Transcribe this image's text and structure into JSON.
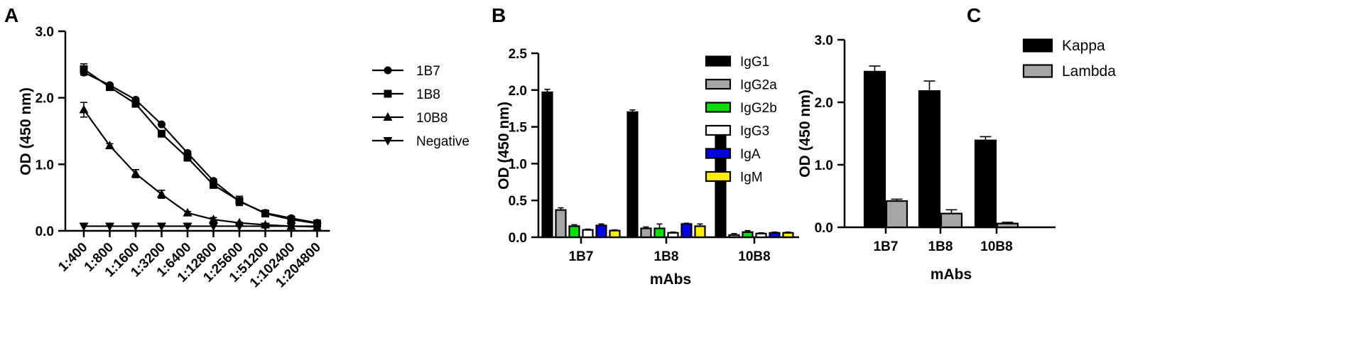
{
  "chart_data": [
    {
      "panel": "A",
      "type": "line",
      "ylabel": "OD (450 nm)",
      "xlabel": "",
      "ylim": [
        0,
        3.0
      ],
      "yticks": [
        "0.0",
        "1.0",
        "2.0",
        "3.0"
      ],
      "categories": [
        "1:400",
        "1:800",
        "1:1600",
        "1:3200",
        "1:6400",
        "1:12800",
        "1:25600",
        "1:51200",
        "1:102400",
        "1:204800"
      ],
      "series": [
        {
          "name": "1B7",
          "marker": "circle",
          "values": [
            2.38,
            2.19,
            1.97,
            1.6,
            1.17,
            0.75,
            0.44,
            0.27,
            0.19,
            0.12
          ],
          "errors": [
            0.04,
            0.02,
            0.03,
            0.02,
            0.03,
            0.03,
            0.04,
            0.02,
            0.02,
            0.01
          ]
        },
        {
          "name": "1B8",
          "marker": "square",
          "values": [
            2.43,
            2.16,
            1.91,
            1.46,
            1.1,
            0.69,
            0.45,
            0.26,
            0.17,
            0.11
          ],
          "errors": [
            0.08,
            0.02,
            0.04,
            0.02,
            0.05,
            0.03,
            0.07,
            0.02,
            0.02,
            0.01
          ]
        },
        {
          "name": "10B8",
          "marker": "triangle-up",
          "values": [
            1.82,
            1.28,
            0.86,
            0.55,
            0.27,
            0.17,
            0.12,
            0.09,
            0.07,
            0.06
          ],
          "errors": [
            0.11,
            0.03,
            0.06,
            0.06,
            0.02,
            0.03,
            0.01,
            0.01,
            0.01,
            0.01
          ]
        },
        {
          "name": "Negative",
          "marker": "triangle-down",
          "values": [
            0.07,
            0.07,
            0.07,
            0.07,
            0.07,
            0.07,
            0.07,
            0.07,
            0.07,
            0.07
          ],
          "errors": [
            0,
            0,
            0,
            0,
            0,
            0,
            0,
            0,
            0,
            0
          ]
        }
      ]
    },
    {
      "panel": "B",
      "type": "bar",
      "ylabel": "OD (450 nm)",
      "xlabel": "mAbs",
      "ylim": [
        0,
        2.5
      ],
      "yticks": [
        "0.0",
        "0.5",
        "1.0",
        "1.5",
        "2.0",
        "2.5"
      ],
      "categories": [
        "1B7",
        "1B8",
        "10B8"
      ],
      "series": [
        {
          "name": "IgG1",
          "color": "#000000",
          "values": [
            1.97,
            1.7,
            1.37
          ],
          "errors": [
            0.04,
            0.03,
            0.07
          ]
        },
        {
          "name": "IgG2a",
          "color": "#a6a6a6",
          "values": [
            0.37,
            0.12,
            0.03
          ],
          "errors": [
            0.03,
            0.02,
            0.02
          ]
        },
        {
          "name": "IgG2b",
          "color": "#00e000",
          "values": [
            0.15,
            0.12,
            0.07
          ],
          "errors": [
            0.02,
            0.06,
            0.02
          ]
        },
        {
          "name": "IgG3",
          "color": "#ffffff",
          "values": [
            0.1,
            0.06,
            0.05
          ],
          "errors": [
            0.01,
            0.01,
            0.01
          ]
        },
        {
          "name": "IgA",
          "color": "#0000e6",
          "values": [
            0.16,
            0.18,
            0.06
          ],
          "errors": [
            0.02,
            0.01,
            0.01
          ]
        },
        {
          "name": "IgM",
          "color": "#ffee00",
          "values": [
            0.09,
            0.15,
            0.06
          ],
          "errors": [
            0.01,
            0.03,
            0.01
          ]
        }
      ]
    },
    {
      "panel": "C",
      "type": "bar",
      "ylabel": "OD (450 nm)",
      "xlabel": "mAbs",
      "ylim": [
        0,
        3.0
      ],
      "yticks": [
        "0.0",
        "1.0",
        "2.0",
        "3.0"
      ],
      "categories": [
        "1B7",
        "1B8",
        "10B8"
      ],
      "series": [
        {
          "name": "Kappa",
          "color": "#000000",
          "values": [
            2.49,
            2.18,
            1.39
          ],
          "errors": [
            0.09,
            0.16,
            0.06
          ]
        },
        {
          "name": "Lambda",
          "color": "#a6a6a6",
          "values": [
            0.42,
            0.22,
            0.06
          ],
          "errors": [
            0.03,
            0.06,
            0.02
          ]
        }
      ]
    }
  ]
}
